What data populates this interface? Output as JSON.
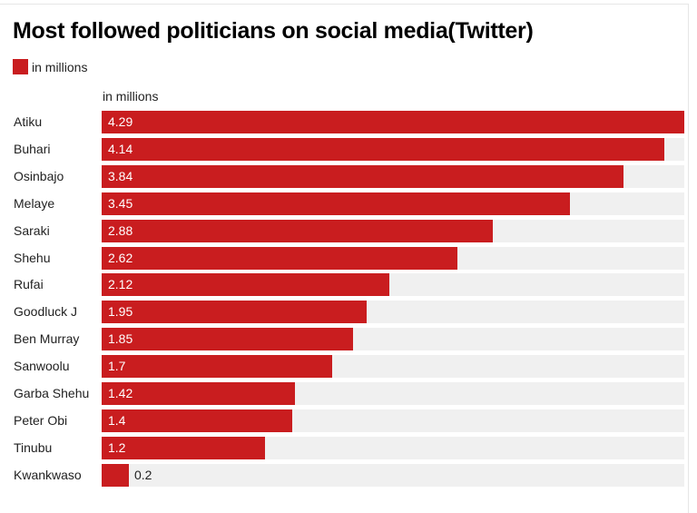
{
  "chart_data": {
    "type": "bar",
    "orientation": "horizontal",
    "title": "Most followed politicians on social media(Twitter)",
    "xlabel": "in millions",
    "ylabel": "",
    "legend": {
      "entries": [
        "in millions"
      ],
      "placement": "top-left"
    },
    "categories": [
      "Atiku",
      "Buhari",
      "Osinbajo",
      "Melaye",
      "Saraki",
      "Shehu",
      "Rufai",
      "Goodluck J",
      "Ben Murray",
      "Sanwoolu",
      "Garba Shehu",
      "Peter Obi",
      "Tinubu",
      "Kwankwaso"
    ],
    "series": [
      {
        "name": "in millions",
        "values": [
          4.29,
          4.14,
          3.84,
          3.45,
          2.88,
          2.62,
          2.12,
          1.95,
          1.85,
          1.7,
          1.42,
          1.4,
          1.2,
          0.2
        ]
      }
    ],
    "value_labels": [
      "4.29",
      "4.14",
      "3.84",
      "3.45",
      "2.88",
      "2.62",
      "2.12",
      "1.95",
      "1.85",
      "1.7",
      "1.42",
      "1.4",
      "1.2",
      "0.2"
    ],
    "xlim": [
      0,
      4.29
    ],
    "grid": false
  },
  "colors": {
    "bar": "#c91d1f",
    "track": "#f0f0f0",
    "value_inside": "#ffffff",
    "value_outside": "#222222"
  }
}
